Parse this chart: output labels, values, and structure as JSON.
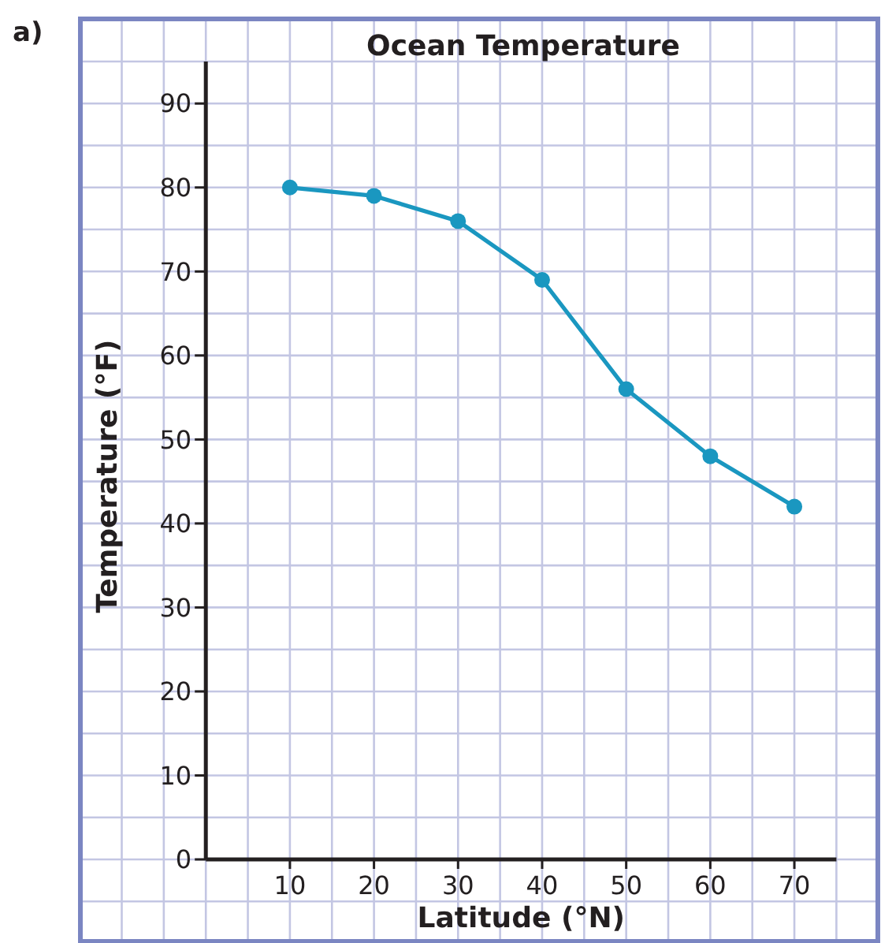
{
  "chart_data": {
    "type": "line",
    "title": "Ocean Temperature",
    "xlabel": "Latitude (°N)",
    "ylabel": "Temperature (°F)",
    "annotations": [
      "a)"
    ],
    "x": [
      10,
      20,
      30,
      40,
      50,
      60,
      70
    ],
    "series": [
      {
        "color": "#1a97c0",
        "values": [
          80,
          79,
          76,
          69,
          56,
          48,
          42
        ]
      }
    ],
    "xlim": [
      0,
      75
    ],
    "xticks": [
      10,
      20,
      30,
      40,
      50,
      60,
      70
    ],
    "ylim": [
      0,
      95
    ],
    "yticks": [
      0,
      10,
      20,
      30,
      40,
      50,
      60,
      70,
      80,
      90
    ],
    "grid": true,
    "marker": "circle",
    "line_style": "solid"
  }
}
